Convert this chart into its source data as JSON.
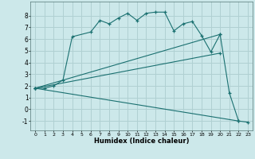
{
  "xlabel": "Humidex (Indice chaleur)",
  "xlim": [
    -0.5,
    23.5
  ],
  "ylim": [
    -1.8,
    9.2
  ],
  "yticks": [
    -1,
    0,
    1,
    2,
    3,
    4,
    5,
    6,
    7,
    8
  ],
  "xticks": [
    0,
    1,
    2,
    3,
    4,
    5,
    6,
    7,
    8,
    9,
    10,
    11,
    12,
    13,
    14,
    15,
    16,
    17,
    18,
    19,
    20,
    21,
    22,
    23
  ],
  "bg_color": "#cce8ea",
  "grid_color": "#b0d0d2",
  "line_color": "#1a7070",
  "line1_x": [
    0,
    1,
    2,
    3,
    4,
    6,
    7,
    8,
    9,
    10,
    11,
    12,
    13,
    14,
    15,
    16,
    17,
    18,
    19,
    20
  ],
  "line1_y": [
    1.8,
    1.8,
    2.0,
    2.5,
    6.2,
    6.6,
    7.6,
    7.3,
    7.8,
    8.2,
    7.6,
    8.2,
    8.3,
    8.3,
    6.7,
    7.3,
    7.5,
    6.3,
    4.9,
    6.4
  ],
  "line2_x": [
    0,
    20,
    21,
    22,
    23
  ],
  "line2_y": [
    1.8,
    6.4,
    1.4,
    -1.0,
    -1.1
  ],
  "line3_x": [
    0,
    20
  ],
  "line3_y": [
    1.8,
    4.8
  ],
  "line4_x": [
    0,
    22
  ],
  "line4_y": [
    1.8,
    -1.0
  ]
}
